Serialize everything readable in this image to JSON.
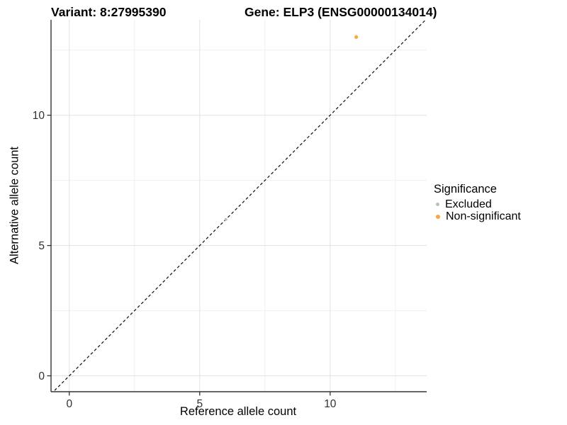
{
  "titles": {
    "left": "Variant: 8:27995390",
    "right": "Gene: ELP3 (ENSG00000134014)"
  },
  "chart_data": {
    "type": "scatter",
    "xlabel": "Reference allele count",
    "ylabel": "Alternative allele count",
    "xlim": [
      -0.7,
      13.7
    ],
    "ylim": [
      -0.61,
      13.66
    ],
    "xticks": [
      0,
      5,
      10
    ],
    "yticks": [
      0,
      5,
      10
    ],
    "minor_xticks": [
      2.5,
      7.5,
      12.5
    ],
    "minor_yticks": [
      2.5,
      7.5,
      12.5
    ],
    "grid": true,
    "identity_line": {
      "slope": 1,
      "intercept": 0,
      "linetype": "dashed",
      "color": "#1A1A1A"
    },
    "series": [
      {
        "name": "Excluded",
        "color": "#BEBEBE",
        "radius": 2.1,
        "points": [
          {
            "x": 6,
            "y": 6
          }
        ]
      },
      {
        "name": "Non-significant",
        "color": "#FCA642",
        "radius": 2.6,
        "points": [
          {
            "x": 11,
            "y": 13
          }
        ]
      }
    ],
    "legend": {
      "title": "Significance",
      "position": "right",
      "entries": [
        {
          "label": "Excluded",
          "color": "#BEBEBE",
          "key_size": 5
        },
        {
          "label": "Non-significant",
          "color": "#FCA642",
          "key_size": 6
        }
      ]
    }
  },
  "colors": {
    "background": "#FFFFFF",
    "grid_major": "#E4E4E4",
    "grid_minor": "#F0F0F0",
    "axis_line": "#333333",
    "tick_label": "#303030"
  }
}
